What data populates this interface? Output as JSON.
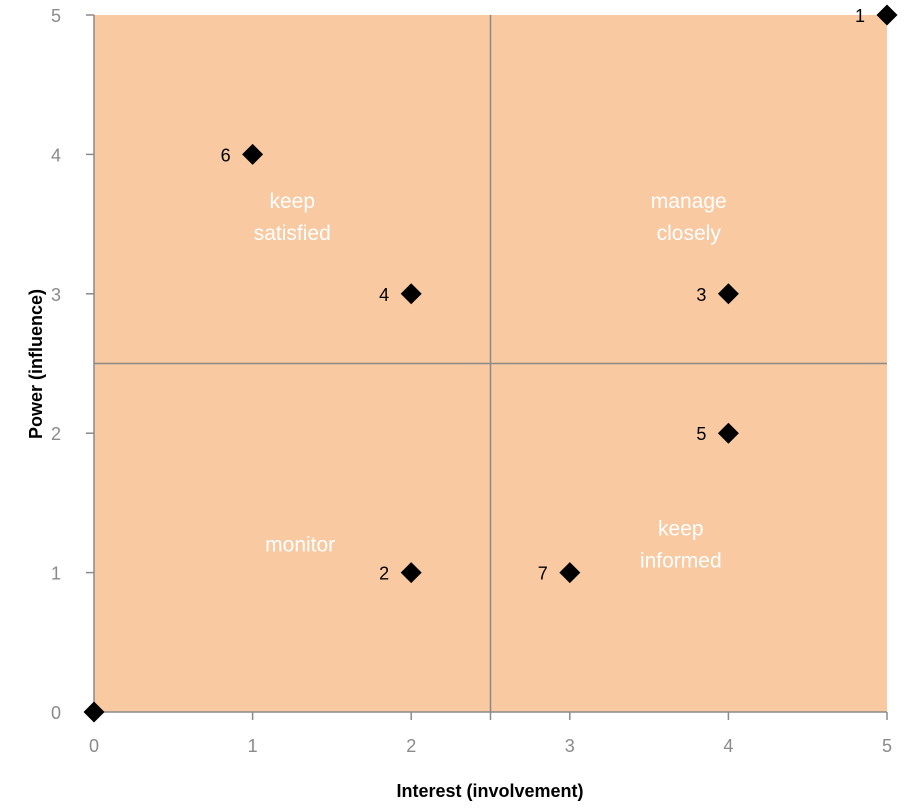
{
  "chart_data": {
    "type": "scatter",
    "xlabel": "Interest (involvement)",
    "ylabel": "Power (influence)",
    "xlim": [
      0,
      5
    ],
    "ylim": [
      0,
      5
    ],
    "x_ticks": [
      "0",
      "1",
      "2",
      "3",
      "4",
      "5"
    ],
    "y_ticks": [
      "0",
      "1",
      "2",
      "3",
      "4",
      "5"
    ],
    "divider": {
      "x": 2.5,
      "y": 2.5
    },
    "points": [
      {
        "label": "",
        "x": 0,
        "y": 0
      },
      {
        "label": "1",
        "x": 5,
        "y": 5
      },
      {
        "label": "6",
        "x": 1,
        "y": 4
      },
      {
        "label": "4",
        "x": 2,
        "y": 3
      },
      {
        "label": "3",
        "x": 4,
        "y": 3
      },
      {
        "label": "5",
        "x": 4,
        "y": 2
      },
      {
        "label": "2",
        "x": 2,
        "y": 1
      },
      {
        "label": "7",
        "x": 3,
        "y": 1
      }
    ],
    "quadrants": [
      {
        "text": [
          "keep",
          "satisfied"
        ],
        "x": 1.25,
        "y": 3.55
      },
      {
        "text": [
          "manage",
          "closely"
        ],
        "x": 3.75,
        "y": 3.55
      },
      {
        "text": [
          "monitor"
        ],
        "x": 1.3,
        "y": 1.2
      },
      {
        "text": [
          "keep",
          "informed"
        ],
        "x": 3.7,
        "y": 1.2
      }
    ],
    "colors": {
      "plot_fill": "#F9C9A2",
      "axis": "#8a8a8a",
      "grid_divider": "#8a8a8a",
      "marker": "#000000",
      "quadrant_text": "#ffffff"
    },
    "grid": false,
    "legend": "none"
  }
}
